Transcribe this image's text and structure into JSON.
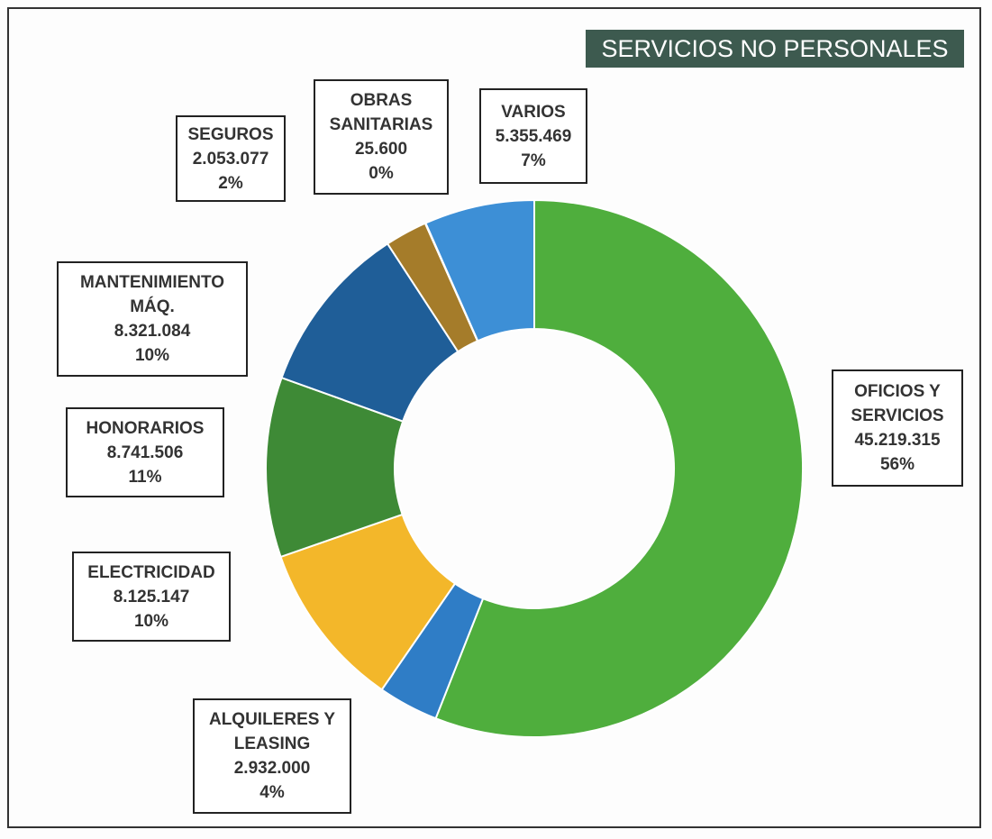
{
  "chart_data": {
    "type": "donut",
    "title": "SERVICIOS NO PERSONALES",
    "categories": [
      "OFICIOS Y SERVICIOS",
      "ALQUILERES Y LEASING",
      "ELECTRICIDAD",
      "HONORARIOS",
      "MANTENIMIENTO MÁQ.",
      "SEGUROS",
      "OBRAS SANITARIAS",
      "VARIOS"
    ],
    "values": [
      45219315,
      2932000,
      8125147,
      8741506,
      8321084,
      2053077,
      25600,
      5355469
    ],
    "value_labels": [
      "45.219.315",
      "2.932.000",
      "8.125.147",
      "8.741.506",
      "8.321.084",
      "2.053.077",
      "25.600",
      "5.355.469"
    ],
    "percentages": [
      56,
      4,
      10,
      11,
      10,
      2,
      0,
      7
    ],
    "percent_labels": [
      "56%",
      "4%",
      "10%",
      "11%",
      "10%",
      "2%",
      "0%",
      "7%"
    ],
    "colors": [
      "#4fae3d",
      "#2f7dc6",
      "#f3b72a",
      "#3e8a36",
      "#1f5e98",
      "#a57c2a",
      "#c9a03a",
      "#3d8fd6"
    ]
  }
}
